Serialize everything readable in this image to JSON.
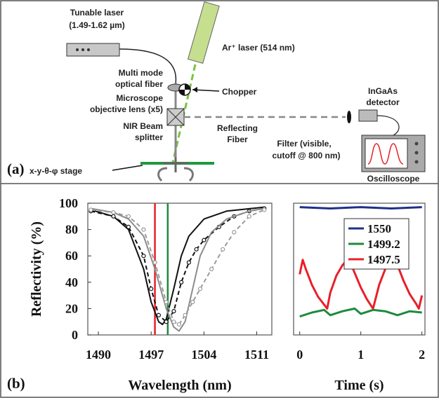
{
  "panel_a": {
    "label": "(a)",
    "tunable_laser": [
      "Tunable laser",
      "(1.49-1.62 µm)"
    ],
    "ar_laser": "Ar⁺ laser (514 nm)",
    "fiber": [
      "Multi mode",
      "optical fiber"
    ],
    "chopper": "Chopper",
    "objective": [
      "Microscope",
      "objective lens (x5)"
    ],
    "detector": [
      "InGaAs",
      "detector"
    ],
    "splitter": [
      "NIR Beam",
      "splitter"
    ],
    "reflecting_fiber": [
      "Reflecting",
      "Fiber"
    ],
    "filter": [
      "Filter (visible,",
      "cutoff @ 800 nm)"
    ],
    "stage": "x-y-θ-φ stage",
    "oscilloscope": "Oscilloscope"
  },
  "panel_b": {
    "label": "(b)"
  },
  "chart_data": [
    {
      "type": "line",
      "y_label": "Reflectivity (%)",
      "x_label": "Wavelength (nm)",
      "xlim": [
        1488.6,
        1513
      ],
      "xticks": [
        1490,
        1497,
        1504,
        1511
      ],
      "ylim": [
        0,
        100
      ],
      "yticks": [
        0,
        20,
        40,
        60,
        80,
        100
      ],
      "markers": [
        {
          "x": 1497.5,
          "color": "#e8202a"
        },
        {
          "x": 1499.2,
          "color": "#1e8a3c"
        }
      ],
      "series": [
        {
          "color": "#111111",
          "dashed": false,
          "circles": false,
          "x": [
            1489,
            1492,
            1494,
            1496,
            1497,
            1498,
            1498.5,
            1499,
            1500,
            1501,
            1502,
            1504,
            1507,
            1512
          ],
          "values": [
            95,
            90,
            80,
            50,
            25,
            10,
            8,
            12,
            35,
            60,
            75,
            88,
            94,
            97
          ]
        },
        {
          "color": "#111111",
          "dashed": true,
          "circles": true,
          "x": [
            1489,
            1492,
            1494,
            1496,
            1497,
            1498,
            1499,
            1500,
            1501,
            1502,
            1503,
            1504,
            1506,
            1508,
            1510,
            1512
          ],
          "values": [
            94,
            90,
            82,
            60,
            35,
            15,
            10,
            18,
            40,
            55,
            65,
            72,
            82,
            90,
            94,
            96
          ]
        },
        {
          "color": "#8c8c8c",
          "dashed": false,
          "circles": false,
          "x": [
            1489,
            1492,
            1494,
            1496,
            1497.5,
            1499,
            1500,
            1500.7,
            1501.5,
            1502.5,
            1503.5,
            1505,
            1507,
            1510,
            1512
          ],
          "values": [
            96,
            93,
            88,
            75,
            50,
            20,
            6,
            3,
            10,
            35,
            60,
            78,
            88,
            94,
            96
          ]
        },
        {
          "color": "#9a9a9a",
          "dashed": true,
          "circles": true,
          "x": [
            1489,
            1492,
            1494,
            1496,
            1497.5,
            1499,
            1500,
            1500.7,
            1501.5,
            1502.5,
            1503.5,
            1505,
            1506.5,
            1508,
            1510,
            1512
          ],
          "values": [
            95,
            93,
            90,
            80,
            55,
            25,
            10,
            8,
            15,
            25,
            35,
            50,
            65,
            78,
            90,
            95
          ]
        }
      ]
    },
    {
      "type": "line",
      "x_label": "Time (s)",
      "xlim": [
        -0.1,
        2.05
      ],
      "xticks": [
        0,
        1,
        2
      ],
      "ylim": [
        0,
        100
      ],
      "legend": "upper right",
      "series": [
        {
          "name": "1550",
          "color": "#1f2f8a",
          "x": [
            0,
            0.5,
            1,
            1.5,
            2
          ],
          "values": [
            97,
            96,
            97,
            96,
            97
          ]
        },
        {
          "name": "1499.2",
          "color": "#1e8a3c",
          "x": [
            0,
            0.2,
            0.4,
            0.5,
            0.7,
            0.9,
            1.0,
            1.2,
            1.4,
            1.6,
            1.8,
            2.0
          ],
          "values": [
            14,
            17,
            19,
            15,
            18,
            20,
            16,
            19,
            18,
            15,
            18,
            17
          ]
        },
        {
          "name": "1497.5",
          "color": "#e8202a",
          "x": [
            0,
            0.05,
            0.1,
            0.2,
            0.3,
            0.4,
            0.45,
            0.5,
            0.6,
            0.7,
            0.8,
            0.9,
            1.0,
            1.1,
            1.2,
            1.3,
            1.4,
            1.5,
            1.55,
            1.6,
            1.7,
            1.8,
            1.9,
            1.95,
            2.0
          ],
          "values": [
            46,
            57,
            50,
            38,
            29,
            23,
            20,
            32,
            45,
            53,
            58,
            47,
            36,
            27,
            20,
            38,
            50,
            56,
            58,
            53,
            41,
            31,
            24,
            20,
            30
          ]
        }
      ]
    }
  ]
}
